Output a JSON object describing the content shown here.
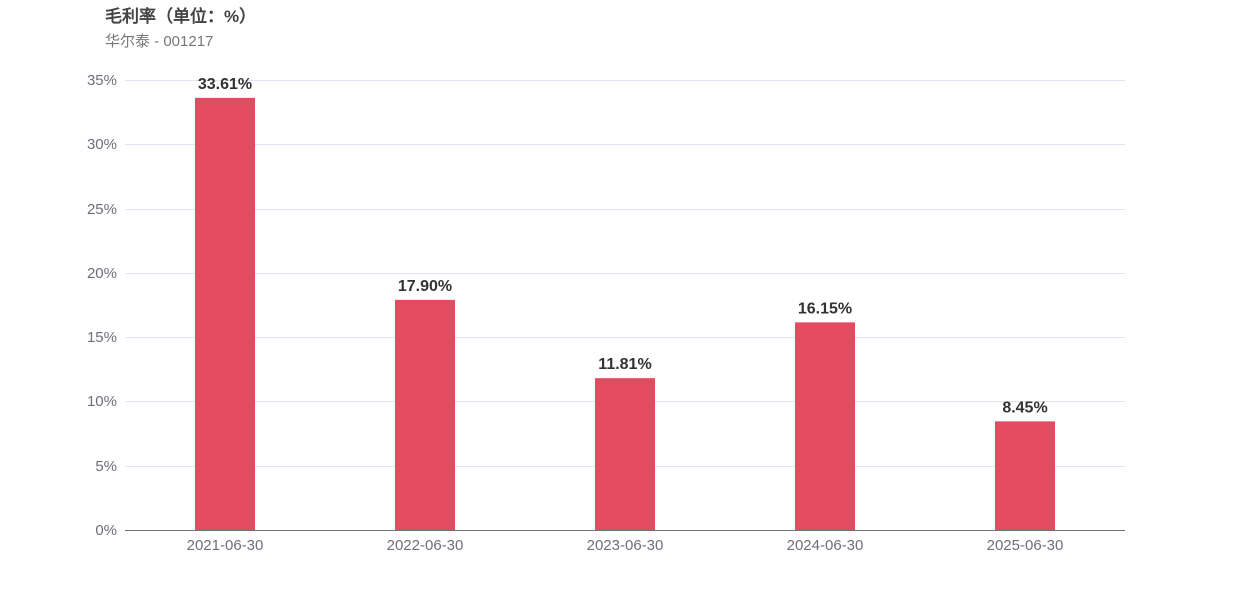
{
  "title": "毛利率（单位：%）",
  "subtitle": "华尔泰 - 001217",
  "colors": {
    "bar": "#e34c60",
    "grid": "#e0e6f1",
    "axis": "#6e7079",
    "label": "#333333"
  },
  "chart_data": {
    "type": "bar",
    "title": "毛利率（单位：%）",
    "subtitle": "华尔泰 - 001217",
    "categories": [
      "2021-06-30",
      "2022-06-30",
      "2023-06-30",
      "2024-06-30",
      "2025-06-30"
    ],
    "values": [
      33.61,
      17.9,
      11.81,
      16.15,
      8.45
    ],
    "value_labels": [
      "33.61%",
      "17.90%",
      "11.81%",
      "16.15%",
      "8.45%"
    ],
    "ylim": [
      0,
      35
    ],
    "y_ticks": [
      0,
      5,
      10,
      15,
      20,
      25,
      30,
      35
    ],
    "y_tick_labels": [
      "0%",
      "5%",
      "10%",
      "15%",
      "20%",
      "25%",
      "30%",
      "35%"
    ],
    "xlabel": "",
    "ylabel": "",
    "grid": true,
    "legend": "none"
  }
}
